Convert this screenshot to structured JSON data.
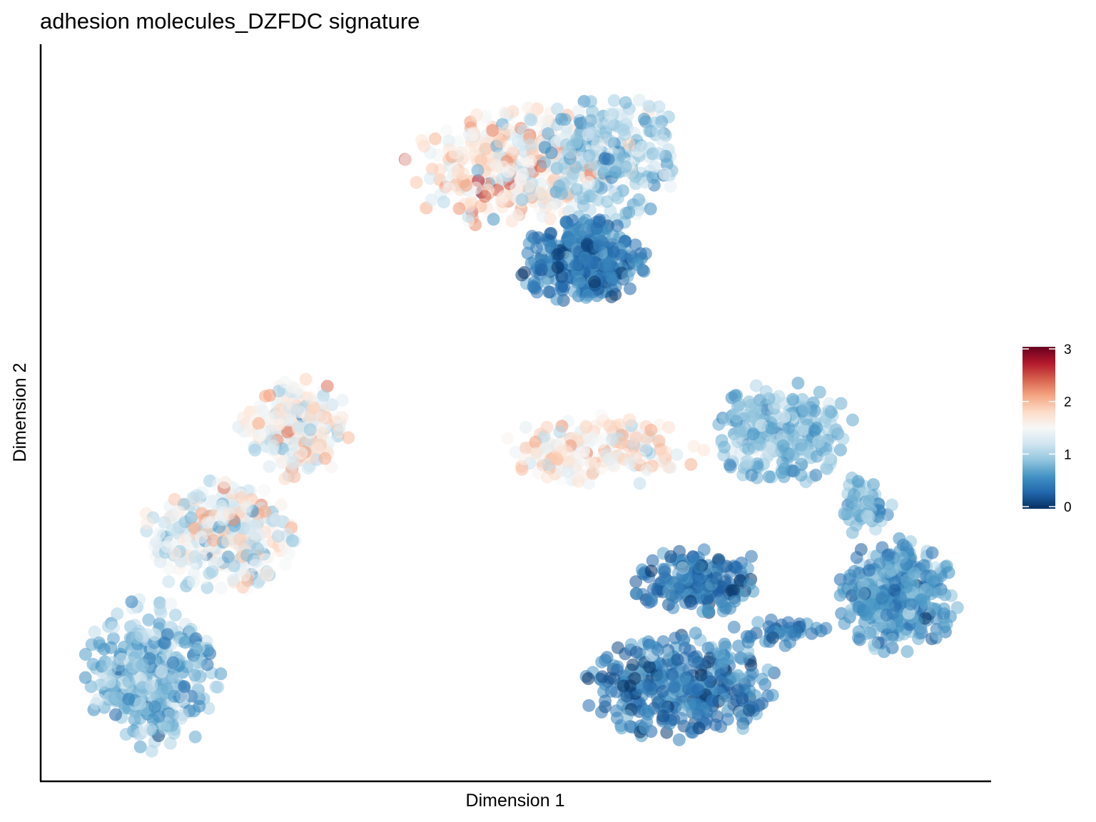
{
  "chart_data": {
    "type": "scatter",
    "title": "adhesion molecules_DZFDC signature",
    "xlabel": "Dimension 1",
    "ylabel": "Dimension 2",
    "colorbar": {
      "ticks": [
        "0",
        "1",
        "2",
        "3"
      ],
      "min": 0,
      "max": 3,
      "colormap": "RdBu_r",
      "stops": [
        "#053061",
        "#2166ac",
        "#4393c3",
        "#92c5de",
        "#d1e5f0",
        "#f7f7f7",
        "#fddbc7",
        "#f4a582",
        "#d6604d",
        "#b2182b",
        "#67001f"
      ]
    },
    "xlim": [
      0,
      100
    ],
    "ylim": [
      0,
      100
    ],
    "grid": false,
    "legend_position": "right",
    "clusters": [
      {
        "id": "top-left-arc-warm",
        "x": [
          38,
          60
        ],
        "y": [
          75,
          93
        ],
        "value": 1.7,
        "spread": 0.4,
        "n": 320
      },
      {
        "id": "top-right-arc",
        "x": [
          52,
          68
        ],
        "y": [
          76,
          95
        ],
        "value": 1.0,
        "spread": 0.3,
        "n": 260
      },
      {
        "id": "top-dense-blob",
        "x": [
          50,
          64
        ],
        "y": [
          65,
          77
        ],
        "value": 0.45,
        "spread": 0.2,
        "n": 380
      },
      {
        "id": "left-upper-blob",
        "x": [
          20,
          33
        ],
        "y": [
          41,
          55
        ],
        "value": 1.5,
        "spread": 0.35,
        "n": 240
      },
      {
        "id": "left-mid-band",
        "x": [
          10,
          28
        ],
        "y": [
          25,
          41
        ],
        "value": 1.35,
        "spread": 0.35,
        "n": 340
      },
      {
        "id": "left-bottom-blob",
        "x": [
          4,
          19
        ],
        "y": [
          3,
          25
        ],
        "value": 0.85,
        "spread": 0.25,
        "n": 380
      },
      {
        "id": "mid-right-band",
        "x": [
          48,
          70
        ],
        "y": [
          40,
          50
        ],
        "value": 1.6,
        "spread": 0.3,
        "n": 180
      },
      {
        "id": "right-upper-cluster",
        "x": [
          71,
          86
        ],
        "y": [
          40,
          55
        ],
        "value": 0.85,
        "spread": 0.2,
        "n": 260
      },
      {
        "id": "right-column",
        "x": [
          84,
          90
        ],
        "y": [
          33,
          42
        ],
        "value": 0.8,
        "spread": 0.2,
        "n": 60
      },
      {
        "id": "right-lower-blob",
        "x": [
          84,
          97
        ],
        "y": [
          17,
          33
        ],
        "value": 0.6,
        "spread": 0.2,
        "n": 360
      },
      {
        "id": "bottom-mid-loop",
        "x": [
          62,
          77
        ],
        "y": [
          22,
          32
        ],
        "value": 0.4,
        "spread": 0.2,
        "n": 200
      },
      {
        "id": "bottom-mid-blob",
        "x": [
          57,
          78
        ],
        "y": [
          5,
          20
        ],
        "value": 0.45,
        "spread": 0.25,
        "n": 380
      },
      {
        "id": "bridge",
        "x": [
          72,
          84
        ],
        "y": [
          18,
          22
        ],
        "value": 0.45,
        "spread": 0.15,
        "n": 40
      }
    ]
  }
}
